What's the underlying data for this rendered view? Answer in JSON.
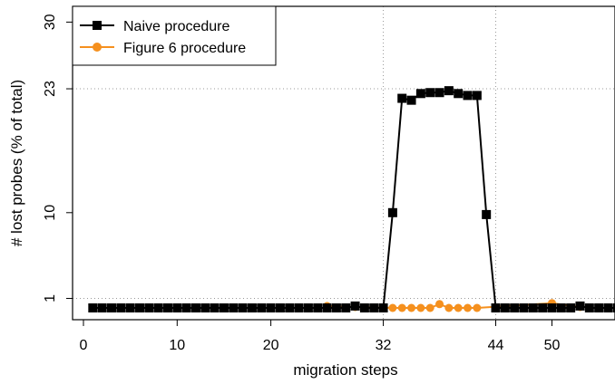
{
  "chart_data": {
    "type": "line",
    "xlabel": "migration steps",
    "ylabel": "# lost probes (% of total)",
    "xlim": [
      0,
      57
    ],
    "ylim": [
      0,
      30
    ],
    "x_ticks": [
      0,
      10,
      20,
      32,
      44,
      50
    ],
    "x_tick_labels": [
      "0",
      "10",
      "20",
      "32",
      "44",
      "50"
    ],
    "y_ticks": [
      1,
      10,
      23,
      30
    ],
    "y_tick_labels": [
      "1",
      "10",
      "23",
      "30"
    ],
    "reference_lines": {
      "vertical_x": [
        32,
        44
      ],
      "horizontal_y": [
        1,
        23
      ]
    },
    "legend_position": "top-left",
    "series": [
      {
        "name": "Naive procedure",
        "color": "#000000",
        "marker": "square",
        "x": [
          1,
          2,
          3,
          4,
          5,
          6,
          7,
          8,
          9,
          10,
          11,
          12,
          13,
          14,
          15,
          16,
          17,
          18,
          19,
          20,
          21,
          22,
          23,
          24,
          25,
          26,
          27,
          28,
          29,
          30,
          31,
          32,
          33,
          34,
          35,
          36,
          37,
          38,
          39,
          40,
          41,
          42,
          43,
          44,
          45,
          46,
          47,
          48,
          49,
          50,
          51,
          52,
          53,
          54,
          55,
          56,
          57
        ],
        "y": [
          0,
          0,
          0,
          0,
          0,
          0,
          0,
          0,
          0,
          0,
          0,
          0,
          0,
          0,
          0,
          0,
          0,
          0,
          0,
          0,
          0,
          0,
          0,
          0,
          0,
          0,
          0,
          0,
          0.2,
          0,
          0,
          0,
          10,
          22,
          21.8,
          22.5,
          22.6,
          22.6,
          22.8,
          22.5,
          22.3,
          22.3,
          9.8,
          0,
          0,
          0,
          0,
          0,
          0,
          0,
          0,
          0,
          0.2,
          0,
          0,
          0,
          0
        ]
      },
      {
        "name": "Figure 6 procedure",
        "color": "#f5901e",
        "marker": "circle",
        "x": [
          26,
          29,
          33,
          34,
          35,
          36,
          37,
          38,
          39,
          40,
          41,
          42,
          50,
          53
        ],
        "y": [
          0.2,
          0.1,
          0,
          0,
          0,
          0,
          0,
          0.4,
          0,
          0,
          0,
          0,
          0.5,
          0.1
        ]
      }
    ]
  }
}
